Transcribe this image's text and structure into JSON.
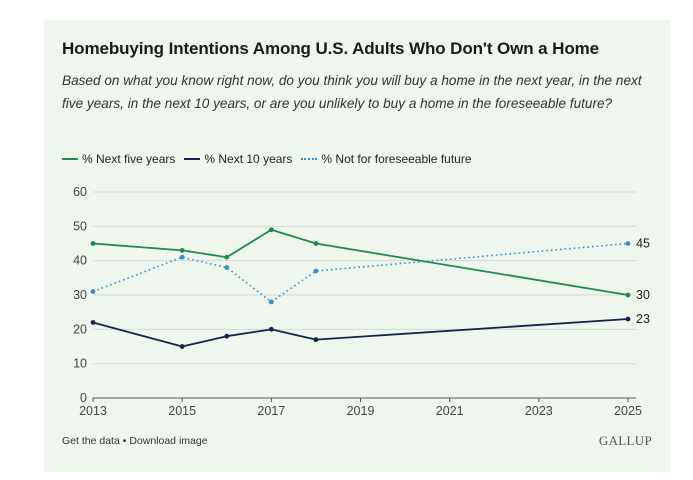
{
  "header": {
    "title": "Homebuying Intentions Among U.S. Adults Who Don't Own a Home",
    "subtitle": "Based on what you know right now, do you think you will buy a home in the next year, in the next five years, in the next 10 years, or are you unlikely to buy a home in the foreseeable future?"
  },
  "footer": {
    "get_data_label": "Get the data",
    "separator": "•",
    "download_label": "Download image",
    "brand": "GALLUP"
  },
  "colors": {
    "green": "#1e8a4c",
    "navy": "#14244f",
    "blue": "#3b8ed0",
    "grid": "#d3dbd2",
    "axis": "#555555"
  },
  "chart_data": {
    "type": "line",
    "title": "Homebuying Intentions Among U.S. Adults Who Don't Own a Home",
    "xlabel": "",
    "ylabel": "",
    "xlim": [
      2013,
      2025
    ],
    "ylim": [
      0,
      60
    ],
    "x_ticks": [
      "2013",
      "2015",
      "2017",
      "2019",
      "2021",
      "2023",
      "2025"
    ],
    "y_ticks": [
      "0",
      "10",
      "20",
      "30",
      "40",
      "50",
      "60"
    ],
    "grid": true,
    "legend_position": "top-left",
    "series": [
      {
        "name": "% Next five years",
        "color": "#1e8a4c",
        "style": "solid",
        "x": [
          2013,
          2015,
          2016,
          2017,
          2018,
          2025
        ],
        "y": [
          45,
          43,
          41,
          49,
          45,
          30
        ],
        "end_label": "30"
      },
      {
        "name": "% Next 10 years",
        "color": "#14244f",
        "style": "solid",
        "x": [
          2013,
          2015,
          2016,
          2017,
          2018,
          2025
        ],
        "y": [
          22,
          15,
          18,
          20,
          17,
          23
        ],
        "end_label": "23"
      },
      {
        "name": "% Not for foreseeable future",
        "color": "#3b8ed0",
        "style": "dotted",
        "x": [
          2013,
          2015,
          2016,
          2017,
          2018,
          2025
        ],
        "y": [
          31,
          41,
          38,
          28,
          37,
          45
        ],
        "end_label": "45"
      }
    ]
  }
}
